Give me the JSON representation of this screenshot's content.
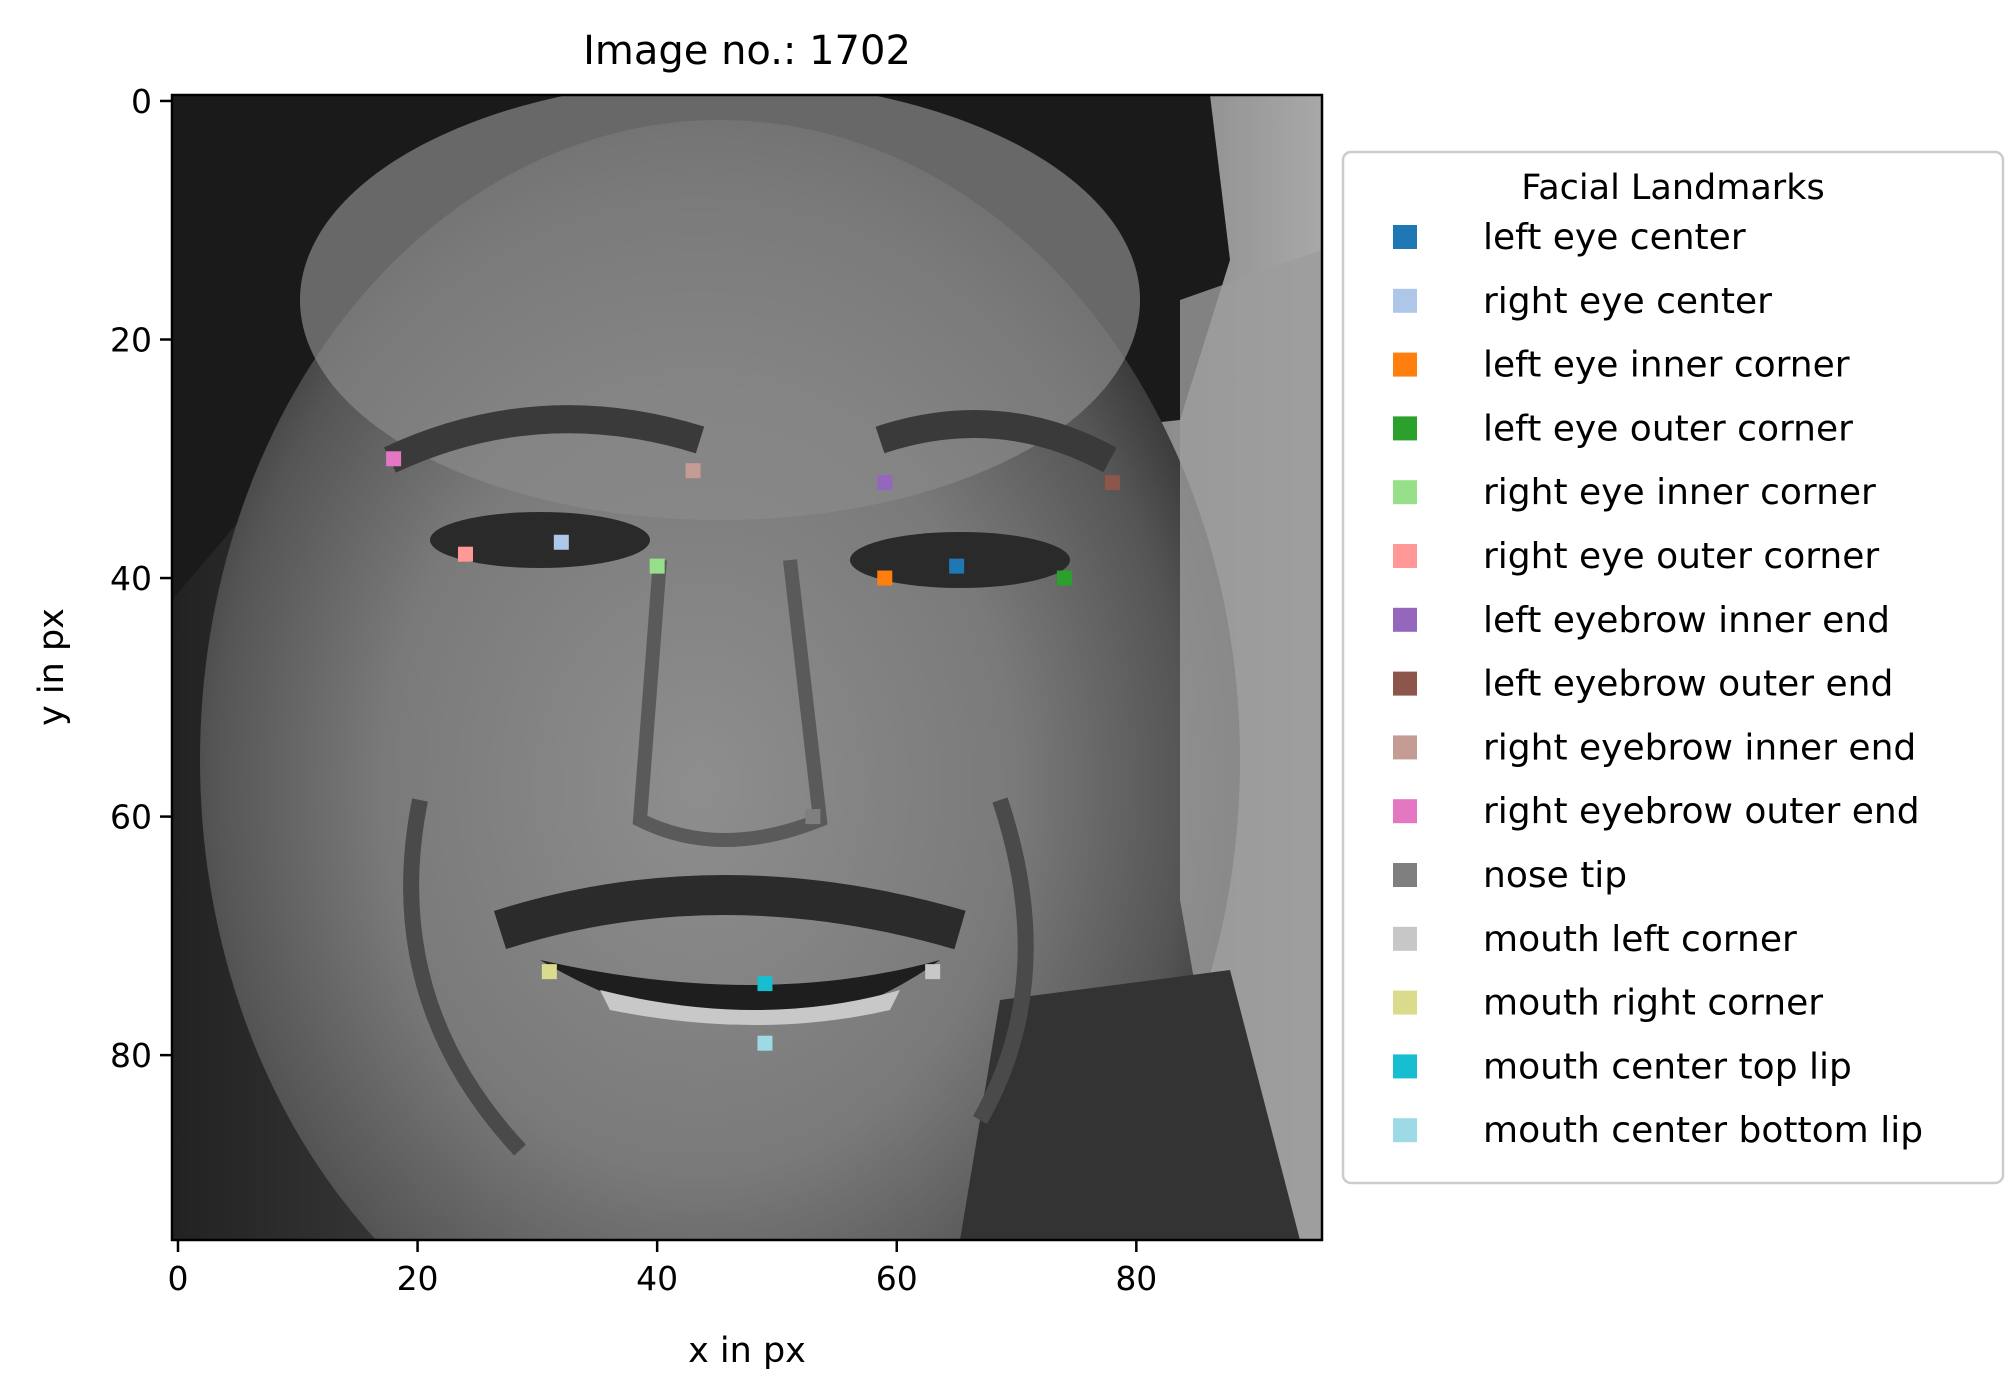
{
  "chart_data": {
    "type": "scatter",
    "title": "Image no.: 1702",
    "xlabel": "x in px",
    "ylabel": "y in px",
    "xlim": [
      -0.5,
      95.5
    ],
    "ylim": [
      95.5,
      -0.5
    ],
    "y_inverted": true,
    "background_image": "grayscale face photo (smiling man)",
    "xticks": [
      0,
      20,
      40,
      60,
      80
    ],
    "yticks": [
      0,
      20,
      40,
      60,
      80
    ],
    "legend": {
      "title": "Facial Landmarks",
      "placement": "outside-right"
    },
    "series": [
      {
        "name": "left eye center",
        "color": "#1f77b4",
        "x": 65,
        "y": 39
      },
      {
        "name": "right eye center",
        "color": "#aec7e8",
        "x": 32,
        "y": 37
      },
      {
        "name": "left eye inner corner",
        "color": "#ff7f0e",
        "x": 59,
        "y": 40
      },
      {
        "name": "left eye outer corner",
        "color": "#2ca02c",
        "x": 74,
        "y": 40
      },
      {
        "name": "right eye inner corner",
        "color": "#98df8a",
        "x": 40,
        "y": 39
      },
      {
        "name": "right eye outer corner",
        "color": "#ff9896",
        "x": 24,
        "y": 38
      },
      {
        "name": "left eyebrow inner end",
        "color": "#9467bd",
        "x": 59,
        "y": 32
      },
      {
        "name": "left eyebrow outer end",
        "color": "#8c564b",
        "x": 78,
        "y": 32
      },
      {
        "name": "right eyebrow inner end",
        "color": "#c49c94",
        "x": 43,
        "y": 31
      },
      {
        "name": "right eyebrow outer end",
        "color": "#e377c2",
        "x": 18,
        "y": 30
      },
      {
        "name": "nose tip",
        "color": "#7f7f7f",
        "x": 53,
        "y": 60
      },
      {
        "name": "mouth left corner",
        "color": "#c7c7c7",
        "x": 63,
        "y": 73
      },
      {
        "name": "mouth right corner",
        "color": "#dbdb8d",
        "x": 31,
        "y": 73
      },
      {
        "name": "mouth center top lip",
        "color": "#17becf",
        "x": 49,
        "y": 74
      },
      {
        "name": "mouth center bottom lip",
        "color": "#9edae5",
        "x": 49,
        "y": 79
      }
    ]
  }
}
